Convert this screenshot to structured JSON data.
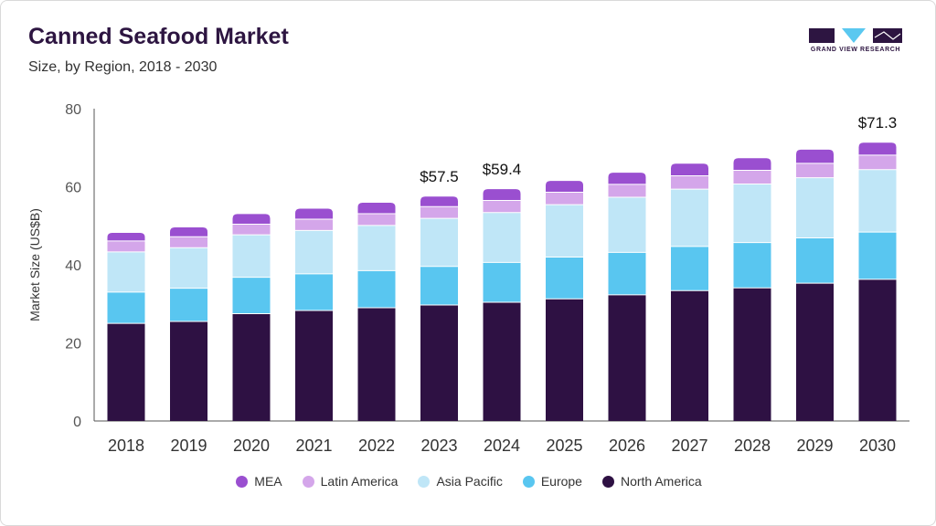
{
  "header": {
    "title": "Canned Seafood Market",
    "subtitle": "Size, by Region, 2018 - 2030"
  },
  "logo": {
    "text": "GRAND VIEW RESEARCH",
    "color": "#2d1541",
    "accent": "#5ac8f0"
  },
  "chart_data": {
    "type": "bar",
    "stacked": true,
    "title": "Canned Seafood Market",
    "subtitle": "Size, by Region, 2018 - 2030",
    "xlabel": "",
    "ylabel": "Market Size (US$B)",
    "ylim": [
      0,
      80
    ],
    "yticks": [
      "0",
      "20",
      "40",
      "60",
      "80"
    ],
    "categories": [
      "2018",
      "2019",
      "2020",
      "2021",
      "2022",
      "2023",
      "2024",
      "2025",
      "2026",
      "2027",
      "2028",
      "2029",
      "2030"
    ],
    "series": [
      {
        "name": "North America",
        "color": "#2e1143",
        "values": [
          25.0,
          25.5,
          27.5,
          28.3,
          29.0,
          29.7,
          30.4,
          31.3,
          32.3,
          33.4,
          34.1,
          35.3,
          36.3
        ]
      },
      {
        "name": "Europe",
        "color": "#59c6f0",
        "values": [
          8.0,
          8.5,
          9.3,
          9.4,
          9.5,
          9.9,
          10.2,
          10.7,
          10.9,
          11.3,
          11.6,
          11.6,
          12.1
        ]
      },
      {
        "name": "Asia Pacific",
        "color": "#bfe6f7",
        "values": [
          10.3,
          10.4,
          10.9,
          11.1,
          11.6,
          12.3,
          12.8,
          13.4,
          14.1,
          14.7,
          15.0,
          15.4,
          16.0
        ]
      },
      {
        "name": "Latin America",
        "color": "#d4a6ea",
        "values": [
          2.8,
          2.8,
          2.7,
          2.9,
          3.0,
          3.0,
          3.1,
          3.2,
          3.3,
          3.4,
          3.5,
          3.7,
          3.7
        ]
      },
      {
        "name": "MEA",
        "color": "#9a4fd0",
        "values": [
          2.1,
          2.4,
          2.6,
          2.7,
          2.8,
          2.6,
          2.9,
          2.9,
          3.0,
          3.1,
          3.1,
          3.5,
          3.2
        ]
      }
    ],
    "annotations": [
      {
        "category": "2023",
        "label": "$57.5"
      },
      {
        "category": "2024",
        "label": "$59.4"
      },
      {
        "category": "2030",
        "label": "$71.3"
      }
    ],
    "legend": {
      "placement": "bottom",
      "order": [
        "MEA",
        "Latin America",
        "Asia Pacific",
        "Europe",
        "North America"
      ]
    },
    "grid": false
  }
}
